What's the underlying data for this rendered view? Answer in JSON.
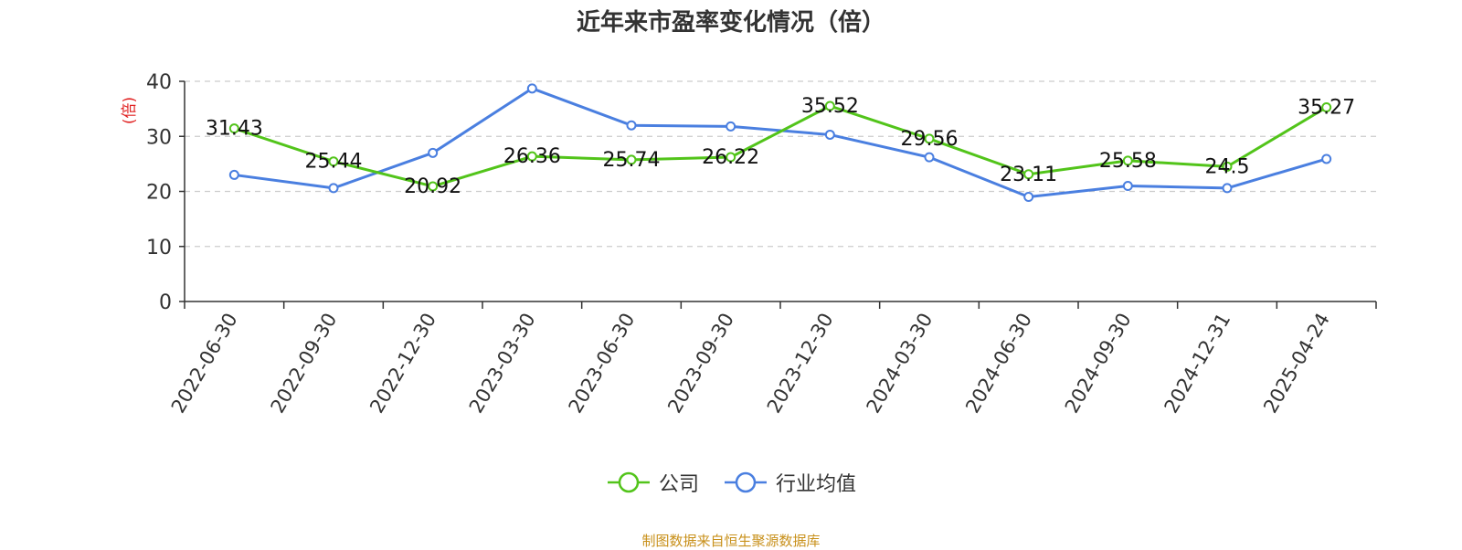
{
  "title": "近年来市盈率变化情况（倍）",
  "source": "制图数据来自恒生聚源数据库",
  "colors": {
    "company": "#52c41a",
    "industry": "#4a7fe0",
    "axis_unit": "#e02020"
  },
  "chart_data": {
    "type": "line",
    "title": "近年来市盈率变化情况（倍）",
    "ylabel": "(倍)",
    "ylim": [
      0,
      40
    ],
    "yticks": [
      0,
      10,
      20,
      30,
      40
    ],
    "grid": true,
    "legend_position": "bottom",
    "categories": [
      "2022-06-30",
      "2022-09-30",
      "2022-12-30",
      "2023-03-30",
      "2023-06-30",
      "2023-09-30",
      "2023-12-30",
      "2024-03-30",
      "2024-06-30",
      "2024-09-30",
      "2024-12-31",
      "2025-04-24"
    ],
    "series": [
      {
        "name": "公司",
        "values": [
          31.43,
          25.44,
          20.92,
          26.36,
          25.74,
          26.22,
          35.52,
          29.56,
          23.11,
          25.58,
          24.5,
          35.27
        ],
        "labels": [
          "31.43",
          "25.44",
          "20.92",
          "26.36",
          "25.74",
          "26.22",
          "35.52",
          "29.56",
          "23.11",
          "25.58",
          "24.5",
          "35.27"
        ]
      },
      {
        "name": "行业均值",
        "values": [
          23.0,
          20.6,
          27.0,
          38.7,
          32.0,
          31.8,
          30.3,
          26.2,
          19.0,
          21.0,
          20.6,
          25.9
        ]
      }
    ]
  }
}
